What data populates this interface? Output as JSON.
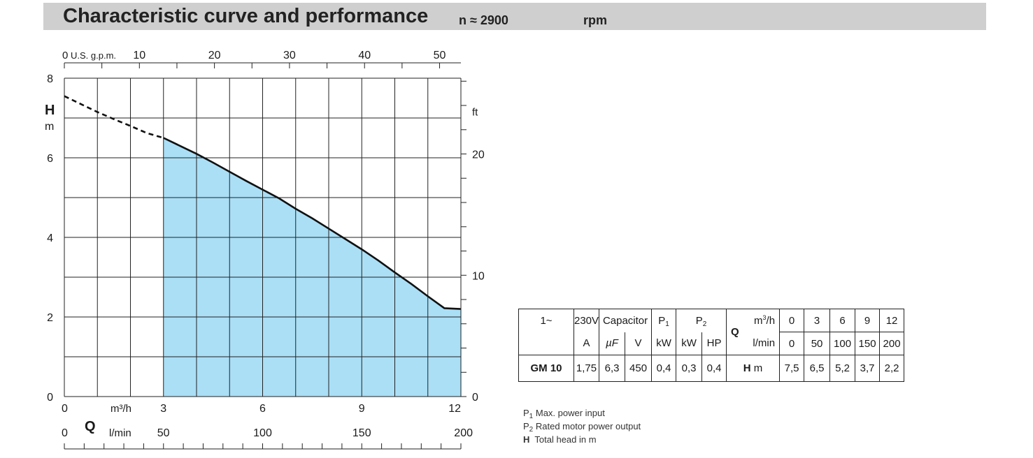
{
  "header": {
    "title": "Characteristic curve and performance",
    "speed": "n ≈ 2900",
    "speed_unit": "rpm"
  },
  "chart_data": {
    "type": "area",
    "x_label": "Q",
    "x_unit_m3h": "m³/h",
    "x_unit_lmin": "l/min",
    "y_label": "H",
    "y_unit": "m",
    "right_unit": "ft",
    "top_unit": "U.S. g.p.m.",
    "xlim": [
      0,
      12
    ],
    "ylim": [
      0,
      8
    ],
    "x_ticks_m3h": [
      "0",
      "3",
      "6",
      "9",
      "12"
    ],
    "x_ticks_lmin": [
      "0",
      "50",
      "100",
      "150",
      "200"
    ],
    "y_ticks_m": [
      "0",
      "2",
      "4",
      "6",
      "8"
    ],
    "y_ticks_ft": [
      "0",
      "10",
      "20"
    ],
    "top_ticks": [
      "0",
      "10",
      "20",
      "30",
      "40",
      "50"
    ],
    "grid": true,
    "curve_dashed": [
      [
        0,
        7.55
      ],
      [
        0.5,
        7.35
      ],
      [
        1,
        7.15
      ],
      [
        1.5,
        6.97
      ],
      [
        2,
        6.8
      ],
      [
        2.5,
        6.62
      ],
      [
        3,
        6.5
      ]
    ],
    "curve_solid": [
      [
        3,
        6.5
      ],
      [
        3.5,
        6.3
      ],
      [
        4,
        6.1
      ],
      [
        4.5,
        5.88
      ],
      [
        5,
        5.65
      ],
      [
        5.5,
        5.42
      ],
      [
        6,
        5.2
      ],
      [
        6.5,
        4.98
      ],
      [
        7,
        4.72
      ],
      [
        7.5,
        4.48
      ],
      [
        8,
        4.22
      ],
      [
        8.5,
        3.96
      ],
      [
        9,
        3.7
      ],
      [
        9.5,
        3.42
      ],
      [
        10,
        3.12
      ],
      [
        10.5,
        2.83
      ],
      [
        11,
        2.52
      ],
      [
        11.5,
        2.22
      ],
      [
        12,
        2.2
      ]
    ],
    "operating_range": [
      3,
      12
    ],
    "fill_color": "#aadff6"
  },
  "table": {
    "phase": "1~",
    "voltage": "230V",
    "capacitor": "Capacitor",
    "p1": "P",
    "p1_sub": "1",
    "p2": "P",
    "p2_sub": "2",
    "q_label": "Q",
    "q_unit_m3h": "m",
    "q_unit_m3h_sup": "3",
    "q_unit_m3h_tail": "/h",
    "q_unit_lmin": "l/min",
    "q_values_m3h": [
      "0",
      "3",
      "6",
      "9",
      "12"
    ],
    "q_values_lmin": [
      "0",
      "50",
      "100",
      "150",
      "200"
    ],
    "units": [
      "A",
      "µF",
      "V",
      "kW",
      "kW",
      "HP"
    ],
    "model": "GM 10",
    "model_values": [
      "1,75",
      "6,3",
      "450",
      "0,4",
      "0,3",
      "0,4"
    ],
    "h_label": "H",
    "h_unit": "m",
    "h_values": [
      "7,5",
      "6,5",
      "5,2",
      "3,7",
      "2,2"
    ]
  },
  "legend": {
    "p1_sym": "P",
    "p1_sub": "1",
    "p1_text": "Max. power input",
    "p2_sym": "P",
    "p2_sub": "2",
    "p2_text": "Rated motor power output",
    "h_sym": "H",
    "h_text": "Total head in m"
  }
}
